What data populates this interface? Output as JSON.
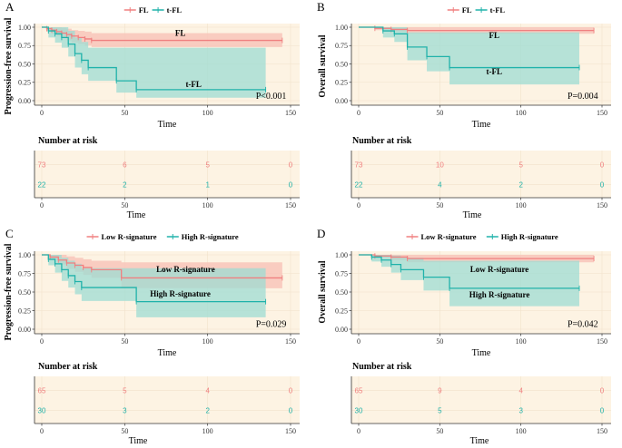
{
  "colors": {
    "group1": "#F08080",
    "group2": "#20B2AA",
    "panel_bg": "#FDF3E3",
    "ci1": "#F8C4BA",
    "ci2": "#9EDCD3",
    "grid": "#F1E2CC",
    "axis": "#333333"
  },
  "chart_data": [
    {
      "type": "line",
      "panel_label": "A",
      "legend": [
        "FL",
        "t-FL"
      ],
      "ylabel": "Progression-free survival",
      "xlabel": "Time",
      "xlim": [
        0,
        150
      ],
      "ylim": [
        0,
        1
      ],
      "xticks": [
        "0",
        "50",
        "100",
        "150"
      ],
      "yticks": [
        "0.00",
        "0.25",
        "0.50",
        "0.75",
        "1.00"
      ],
      "series_labels": [
        "FL",
        "t-FL"
      ],
      "pvalue": "P<0.001",
      "series": [
        {
          "name": "FL",
          "x": [
            0,
            3,
            6,
            9,
            12,
            15,
            18,
            22,
            26,
            30,
            145
          ],
          "y": [
            1.0,
            0.98,
            0.96,
            0.94,
            0.92,
            0.9,
            0.88,
            0.86,
            0.84,
            0.82,
            0.82
          ],
          "ci_lo": [
            1.0,
            0.95,
            0.91,
            0.88,
            0.85,
            0.82,
            0.79,
            0.77,
            0.75,
            0.73,
            0.73
          ],
          "ci_hi": [
            1.0,
            1.0,
            1.0,
            1.0,
            0.99,
            0.98,
            0.96,
            0.95,
            0.94,
            0.92,
            0.92
          ]
        },
        {
          "name": "t-FL",
          "x": [
            0,
            4,
            8,
            12,
            16,
            20,
            24,
            28,
            45,
            57,
            135
          ],
          "y": [
            1.0,
            0.95,
            0.91,
            0.86,
            0.77,
            0.64,
            0.55,
            0.45,
            0.27,
            0.15,
            0.15
          ],
          "ci_lo": [
            1.0,
            0.86,
            0.79,
            0.72,
            0.6,
            0.45,
            0.36,
            0.27,
            0.11,
            0.04,
            0.04
          ],
          "ci_hi": [
            1.0,
            1.0,
            1.0,
            1.0,
            0.95,
            0.86,
            0.8,
            0.72,
            0.72,
            0.72,
            0.72
          ]
        }
      ],
      "risk": {
        "title": "Number at risk",
        "xlabel": "Time",
        "xticks": [
          "0",
          "50",
          "100",
          "150"
        ],
        "rows": [
          {
            "name": "FL",
            "values": [
              "73",
              "6",
              "5",
              "0"
            ]
          },
          {
            "name": "t-FL",
            "values": [
              "22",
              "2",
              "1",
              "0"
            ]
          }
        ]
      }
    },
    {
      "type": "line",
      "panel_label": "B",
      "legend": [
        "FL",
        "t-FL"
      ],
      "ylabel": "Overall survival",
      "xlabel": "Time",
      "xlim": [
        0,
        150
      ],
      "ylim": [
        0,
        1
      ],
      "xticks": [
        "0",
        "50",
        "100",
        "150"
      ],
      "yticks": [
        "0.00",
        "0.25",
        "0.50",
        "0.75",
        "1.00"
      ],
      "series_labels": [
        "FL",
        "t-FL"
      ],
      "pvalue": "P=0.004",
      "series": [
        {
          "name": "FL",
          "x": [
            0,
            10,
            20,
            30,
            145
          ],
          "y": [
            1.0,
            0.985,
            0.97,
            0.955,
            0.955
          ],
          "ci_lo": [
            1.0,
            0.96,
            0.94,
            0.91,
            0.91
          ],
          "ci_hi": [
            1.0,
            1.0,
            1.0,
            1.0,
            1.0
          ]
        },
        {
          "name": "t-FL",
          "x": [
            0,
            15,
            22,
            30,
            42,
            56,
            136
          ],
          "y": [
            1.0,
            0.95,
            0.91,
            0.73,
            0.6,
            0.45,
            0.45
          ],
          "ci_lo": [
            1.0,
            0.86,
            0.8,
            0.55,
            0.4,
            0.22,
            0.22
          ],
          "ci_hi": [
            1.0,
            1.0,
            1.0,
            0.93,
            0.93,
            0.93,
            0.93
          ]
        }
      ],
      "risk": {
        "title": "Number at risk",
        "xlabel": "Time",
        "xticks": [
          "0",
          "50",
          "100",
          "150"
        ],
        "rows": [
          {
            "name": "FL",
            "values": [
              "73",
              "10",
              "5",
              "0"
            ]
          },
          {
            "name": "t-FL",
            "values": [
              "22",
              "4",
              "2",
              "0"
            ]
          }
        ]
      }
    },
    {
      "type": "line",
      "panel_label": "C",
      "legend": [
        "Low R-signature",
        "High R-signature"
      ],
      "ylabel": "Progression-free survival",
      "xlabel": "Time",
      "xlim": [
        0,
        150
      ],
      "ylim": [
        0,
        1
      ],
      "xticks": [
        "0",
        "50",
        "100",
        "150"
      ],
      "yticks": [
        "0.00",
        "0.25",
        "0.50",
        "0.75",
        "1.00"
      ],
      "series_labels": [
        "Low R-signature",
        "High R-signature"
      ],
      "pvalue": "P=0.029",
      "series": [
        {
          "name": "Low R-signature",
          "x": [
            0,
            5,
            10,
            15,
            20,
            25,
            30,
            48,
            145
          ],
          "y": [
            1.0,
            0.97,
            0.93,
            0.89,
            0.86,
            0.83,
            0.8,
            0.69,
            0.69
          ],
          "ci_lo": [
            1.0,
            0.93,
            0.87,
            0.81,
            0.77,
            0.73,
            0.69,
            0.55,
            0.55
          ],
          "ci_hi": [
            1.0,
            1.0,
            1.0,
            0.98,
            0.96,
            0.94,
            0.92,
            0.9,
            0.9
          ]
        },
        {
          "name": "High R-signature",
          "x": [
            0,
            4,
            8,
            12,
            16,
            20,
            24,
            57,
            135
          ],
          "y": [
            1.0,
            0.94,
            0.88,
            0.8,
            0.72,
            0.64,
            0.56,
            0.37,
            0.37
          ],
          "ci_lo": [
            1.0,
            0.86,
            0.76,
            0.65,
            0.56,
            0.47,
            0.38,
            0.16,
            0.16
          ],
          "ci_hi": [
            1.0,
            1.0,
            1.0,
            0.96,
            0.92,
            0.88,
            0.82,
            0.82,
            0.82
          ]
        }
      ],
      "risk": {
        "title": "Number at risk",
        "xlabel": "Time",
        "xticks": [
          "0",
          "50",
          "100",
          "150"
        ],
        "rows": [
          {
            "name": "Low R-signature",
            "values": [
              "65",
              "5",
              "4",
              "0"
            ]
          },
          {
            "name": "High R-signature",
            "values": [
              "30",
              "3",
              "2",
              "0"
            ]
          }
        ]
      }
    },
    {
      "type": "line",
      "panel_label": "D",
      "legend": [
        "Low R-signature",
        "High R-signature"
      ],
      "ylabel": "Overall survival",
      "xlabel": "Time",
      "xlim": [
        0,
        150
      ],
      "ylim": [
        0,
        1
      ],
      "xticks": [
        "0",
        "50",
        "100",
        "150"
      ],
      "yticks": [
        "0.00",
        "0.25",
        "0.50",
        "0.75",
        "1.00"
      ],
      "series_labels": [
        "Low R-signature",
        "High R-signature"
      ],
      "pvalue": "P=0.042",
      "series": [
        {
          "name": "Low R-signature",
          "x": [
            0,
            10,
            20,
            30,
            145
          ],
          "y": [
            1.0,
            0.985,
            0.97,
            0.95,
            0.95
          ],
          "ci_lo": [
            1.0,
            0.96,
            0.93,
            0.9,
            0.9
          ],
          "ci_hi": [
            1.0,
            1.0,
            1.0,
            1.0,
            1.0
          ]
        },
        {
          "name": "High R-signature",
          "x": [
            0,
            8,
            14,
            20,
            26,
            40,
            56,
            136
          ],
          "y": [
            1.0,
            0.97,
            0.93,
            0.87,
            0.8,
            0.7,
            0.55,
            0.55
          ],
          "ci_lo": [
            1.0,
            0.91,
            0.84,
            0.76,
            0.66,
            0.52,
            0.31,
            0.31
          ],
          "ci_hi": [
            1.0,
            1.0,
            1.0,
            0.99,
            0.96,
            0.92,
            0.92,
            0.92
          ]
        }
      ],
      "risk": {
        "title": "Number at risk",
        "xlabel": "Time",
        "xticks": [
          "0",
          "50",
          "100",
          "150"
        ],
        "rows": [
          {
            "name": "Low R-signature",
            "values": [
              "65",
              "9",
              "4",
              "0"
            ]
          },
          {
            "name": "High R-signature",
            "values": [
              "30",
              "5",
              "3",
              "0"
            ]
          }
        ]
      }
    }
  ]
}
